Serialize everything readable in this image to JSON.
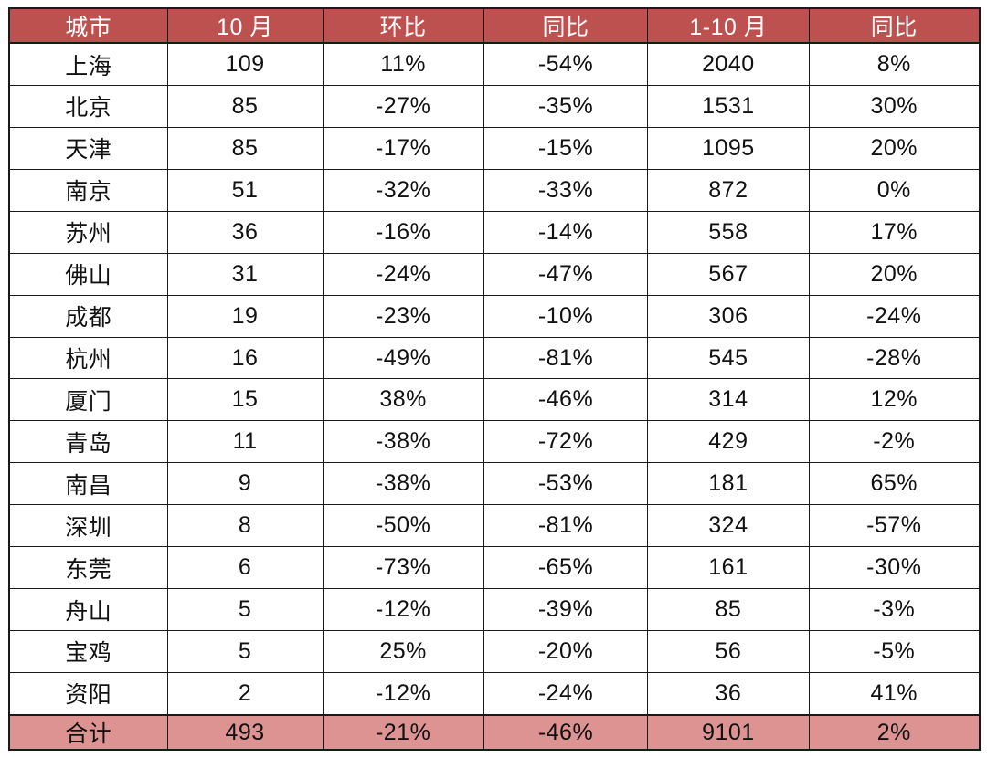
{
  "table": {
    "columns": [
      "城市",
      "10 月",
      "环比",
      "同比",
      "1-10 月",
      "同比"
    ],
    "row_keys": [
      "city",
      "oct",
      "mom",
      "yoy",
      "ytd",
      "ytd_yoy"
    ],
    "rows": [
      {
        "city": "上海",
        "oct": "109",
        "mom": "11%",
        "yoy": "-54%",
        "ytd": "2040",
        "ytd_yoy": "8%"
      },
      {
        "city": "北京",
        "oct": "85",
        "mom": "-27%",
        "yoy": "-35%",
        "ytd": "1531",
        "ytd_yoy": "30%"
      },
      {
        "city": "天津",
        "oct": "85",
        "mom": "-17%",
        "yoy": "-15%",
        "ytd": "1095",
        "ytd_yoy": "20%"
      },
      {
        "city": "南京",
        "oct": "51",
        "mom": "-32%",
        "yoy": "-33%",
        "ytd": "872",
        "ytd_yoy": "0%"
      },
      {
        "city": "苏州",
        "oct": "36",
        "mom": "-16%",
        "yoy": "-14%",
        "ytd": "558",
        "ytd_yoy": "17%"
      },
      {
        "city": "佛山",
        "oct": "31",
        "mom": "-24%",
        "yoy": "-47%",
        "ytd": "567",
        "ytd_yoy": "20%"
      },
      {
        "city": "成都",
        "oct": "19",
        "mom": "-23%",
        "yoy": "-10%",
        "ytd": "306",
        "ytd_yoy": "-24%"
      },
      {
        "city": "杭州",
        "oct": "16",
        "mom": "-49%",
        "yoy": "-81%",
        "ytd": "545",
        "ytd_yoy": "-28%"
      },
      {
        "city": "厦门",
        "oct": "15",
        "mom": "38%",
        "yoy": "-46%",
        "ytd": "314",
        "ytd_yoy": "12%"
      },
      {
        "city": "青岛",
        "oct": "11",
        "mom": "-38%",
        "yoy": "-72%",
        "ytd": "429",
        "ytd_yoy": "-2%"
      },
      {
        "city": "南昌",
        "oct": "9",
        "mom": "-38%",
        "yoy": "-53%",
        "ytd": "181",
        "ytd_yoy": "65%"
      },
      {
        "city": "深圳",
        "oct": "8",
        "mom": "-50%",
        "yoy": "-81%",
        "ytd": "324",
        "ytd_yoy": "-57%"
      },
      {
        "city": "东莞",
        "oct": "6",
        "mom": "-73%",
        "yoy": "-65%",
        "ytd": "161",
        "ytd_yoy": "-30%"
      },
      {
        "city": "舟山",
        "oct": "5",
        "mom": "-12%",
        "yoy": "-39%",
        "ytd": "85",
        "ytd_yoy": "-3%"
      },
      {
        "city": "宝鸡",
        "oct": "5",
        "mom": "25%",
        "yoy": "-20%",
        "ytd": "56",
        "ytd_yoy": "-5%"
      },
      {
        "city": "资阳",
        "oct": "2",
        "mom": "-12%",
        "yoy": "-24%",
        "ytd": "36",
        "ytd_yoy": "41%"
      }
    ],
    "total": {
      "city": "合计",
      "oct": "493",
      "mom": "-21%",
      "yoy": "-46%",
      "ytd": "9101",
      "ytd_yoy": "2%"
    }
  },
  "colors": {
    "header_bg": "#bc5150",
    "header_text": "#ffffff",
    "total_bg": "#dc9391",
    "grid": "#1a1a1a"
  },
  "chart_data": {
    "type": "table",
    "title": "",
    "columns": [
      "城市",
      "10 月",
      "环比",
      "同比",
      "1-10 月",
      "同比"
    ],
    "rows": [
      [
        "上海",
        109,
        "11%",
        "-54%",
        2040,
        "8%"
      ],
      [
        "北京",
        85,
        "-27%",
        "-35%",
        1531,
        "30%"
      ],
      [
        "天津",
        85,
        "-17%",
        "-15%",
        1095,
        "20%"
      ],
      [
        "南京",
        51,
        "-32%",
        "-33%",
        872,
        "0%"
      ],
      [
        "苏州",
        36,
        "-16%",
        "-14%",
        558,
        "17%"
      ],
      [
        "佛山",
        31,
        "-24%",
        "-47%",
        567,
        "20%"
      ],
      [
        "成都",
        19,
        "-23%",
        "-10%",
        306,
        "-24%"
      ],
      [
        "杭州",
        16,
        "-49%",
        "-81%",
        545,
        "-28%"
      ],
      [
        "厦门",
        15,
        "38%",
        "-46%",
        314,
        "12%"
      ],
      [
        "青岛",
        11,
        "-38%",
        "-72%",
        429,
        "-2%"
      ],
      [
        "南昌",
        9,
        "-38%",
        "-53%",
        181,
        "65%"
      ],
      [
        "深圳",
        8,
        "-50%",
        "-81%",
        324,
        "-57%"
      ],
      [
        "东莞",
        6,
        "-73%",
        "-65%",
        161,
        "-30%"
      ],
      [
        "舟山",
        5,
        "-12%",
        "-39%",
        85,
        "-3%"
      ],
      [
        "宝鸡",
        5,
        "25%",
        "-20%",
        56,
        "-5%"
      ],
      [
        "资阳",
        2,
        "-12%",
        "-24%",
        36,
        "41%"
      ],
      [
        "合计",
        493,
        "-21%",
        "-46%",
        9101,
        "2%"
      ]
    ]
  }
}
